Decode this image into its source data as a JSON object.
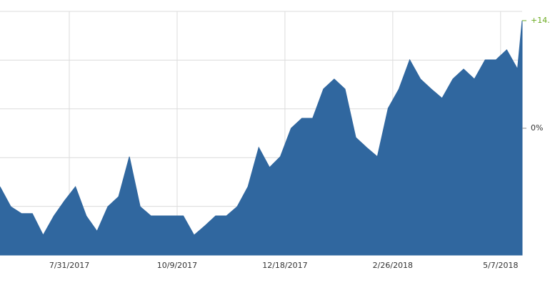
{
  "chart_data": {
    "type": "area",
    "x": [
      "6/16/2017",
      "6/23/2017",
      "6/30/2017",
      "7/7/2017",
      "7/14/2017",
      "7/21/2017",
      "7/28/2017",
      "8/4/2017",
      "8/11/2017",
      "8/18/2017",
      "8/25/2017",
      "9/1/2017",
      "9/8/2017",
      "9/15/2017",
      "9/22/2017",
      "9/29/2017",
      "10/6/2017",
      "10/13/2017",
      "10/20/2017",
      "10/27/2017",
      "11/3/2017",
      "11/10/2017",
      "11/17/2017",
      "11/24/2017",
      "12/1/2017",
      "12/8/2017",
      "12/15/2017",
      "12/22/2017",
      "12/29/2017",
      "1/5/2018",
      "1/12/2018",
      "1/19/2018",
      "1/26/2018",
      "2/2/2018",
      "2/9/2018",
      "2/16/2018",
      "2/23/2018",
      "3/2/2018",
      "3/9/2018",
      "3/16/2018",
      "3/23/2018",
      "3/30/2018",
      "4/6/2018",
      "4/13/2018",
      "4/20/2018",
      "4/27/2018",
      "5/4/2018",
      "5/11/2018",
      "5/18/2018",
      "5/21/2018"
    ],
    "values": [
      -7.6,
      -10.2,
      -11.1,
      -11.1,
      -13.9,
      -11.4,
      -9.4,
      -7.6,
      -11.4,
      -13.4,
      -10.2,
      -8.9,
      -3.7,
      -10.2,
      -11.4,
      -11.4,
      -11.4,
      -11.4,
      -13.9,
      -12.7,
      -11.4,
      -11.4,
      -10.2,
      -7.6,
      -2.5,
      -5.1,
      -3.7,
      0,
      1.3,
      1.3,
      5.1,
      6.4,
      5.1,
      -1.2,
      -2.5,
      -3.7,
      2.6,
      5.1,
      8.9,
      6.4,
      5.1,
      3.9,
      6.4,
      7.7,
      6.4,
      8.9,
      8.9,
      10.2,
      7.7,
      14
    ],
    "value_labels": [
      null,
      null,
      null,
      null,
      null,
      null,
      null,
      null,
      null,
      null,
      null,
      null,
      null,
      null,
      null,
      null,
      null,
      null,
      null,
      null,
      null,
      null,
      null,
      null,
      null,
      null,
      null,
      null,
      null,
      null,
      null,
      null,
      null,
      null,
      null,
      null,
      null,
      null,
      null,
      null,
      null,
      null,
      null,
      null,
      null,
      null,
      null,
      null,
      null,
      "+14."
    ],
    "color": "#30679f",
    "label_color": "#6aaa1e",
    "xlim": [
      "6/16/2017",
      "5/21/2018"
    ],
    "xticks": [
      "7/31/2017",
      "10/9/2017",
      "12/18/2017",
      "2/26/2018",
      "5/7/2018"
    ],
    "ylim": [
      -16.5,
      15.2
    ],
    "yticks": [
      {
        "value": 0,
        "label": "0%"
      }
    ],
    "grid": true
  }
}
